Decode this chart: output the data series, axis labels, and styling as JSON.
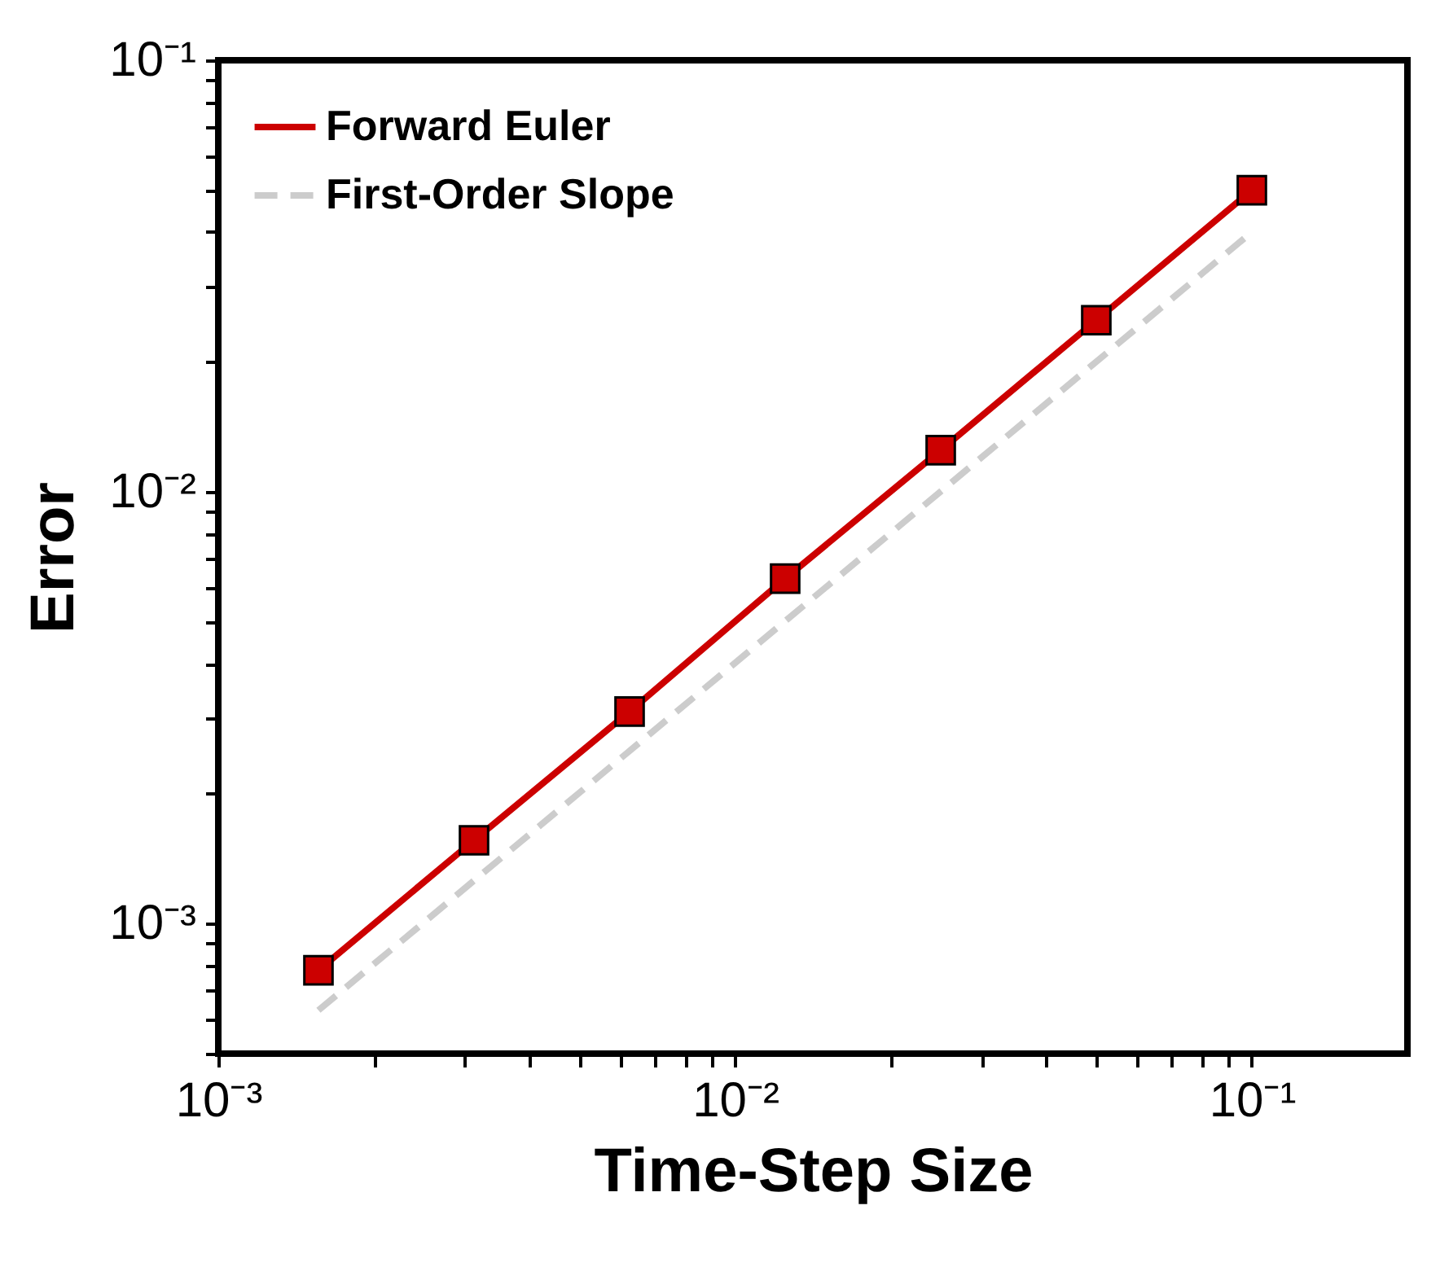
{
  "chart_data": {
    "type": "line",
    "xlabel": "Time-Step Size",
    "ylabel": "Error",
    "log": "xy",
    "grid": false,
    "legend": "top left",
    "xlim": [
      0.001,
      0.2
    ],
    "ylim": [
      0.0005,
      0.1
    ],
    "xticks": [
      {
        "value": 0.001,
        "label": "10⁻³"
      },
      {
        "value": 0.002,
        "label": null
      },
      {
        "value": 0.003,
        "label": null
      },
      {
        "value": 0.004,
        "label": null
      },
      {
        "value": 0.005,
        "label": null
      },
      {
        "value": 0.006,
        "label": null
      },
      {
        "value": 0.007,
        "label": null
      },
      {
        "value": 0.008,
        "label": null
      },
      {
        "value": 0.009,
        "label": null
      },
      {
        "value": 0.01,
        "label": "10⁻²"
      },
      {
        "value": 0.02,
        "label": null
      },
      {
        "value": 0.03,
        "label": null
      },
      {
        "value": 0.04,
        "label": null
      },
      {
        "value": 0.05,
        "label": null
      },
      {
        "value": 0.06,
        "label": null
      },
      {
        "value": 0.07,
        "label": null
      },
      {
        "value": 0.08,
        "label": null
      },
      {
        "value": 0.09,
        "label": null
      },
      {
        "value": 0.1,
        "label": "10⁻¹"
      }
    ],
    "yticks": [
      {
        "value": 0.0005,
        "label": null
      },
      {
        "value": 0.0006,
        "label": null
      },
      {
        "value": 0.0007,
        "label": null
      },
      {
        "value": 0.0008,
        "label": null
      },
      {
        "value": 0.0009,
        "label": null
      },
      {
        "value": 0.001,
        "label": "10⁻³"
      },
      {
        "value": 0.002,
        "label": null
      },
      {
        "value": 0.003,
        "label": null
      },
      {
        "value": 0.004,
        "label": null
      },
      {
        "value": 0.005,
        "label": null
      },
      {
        "value": 0.006,
        "label": null
      },
      {
        "value": 0.007,
        "label": null
      },
      {
        "value": 0.008,
        "label": null
      },
      {
        "value": 0.009,
        "label": null
      },
      {
        "value": 0.01,
        "label": "10⁻²"
      },
      {
        "value": 0.02,
        "label": null
      },
      {
        "value": 0.03,
        "label": null
      },
      {
        "value": 0.04,
        "label": null
      },
      {
        "value": 0.05,
        "label": null
      },
      {
        "value": 0.06,
        "label": null
      },
      {
        "value": 0.07,
        "label": null
      },
      {
        "value": 0.08,
        "label": null
      },
      {
        "value": 0.09,
        "label": null
      },
      {
        "value": 0.1,
        "label": "10⁻¹"
      }
    ],
    "series": [
      {
        "name": "Forward Euler",
        "color": "#cc0000",
        "marker": "square",
        "line_style": "solid",
        "x": [
          0.0015625,
          0.003125,
          0.00625,
          0.0125,
          0.025,
          0.05,
          0.1
        ],
        "values": [
          0.00078,
          0.00156,
          0.0031,
          0.0063,
          0.0125,
          0.025,
          0.05
        ]
      },
      {
        "name": "First-Order Slope",
        "color": "#cccccc",
        "marker": "none",
        "line_style": "dashed",
        "x": [
          0.0015625,
          0.1
        ],
        "values": [
          0.00063,
          0.04
        ]
      }
    ]
  }
}
